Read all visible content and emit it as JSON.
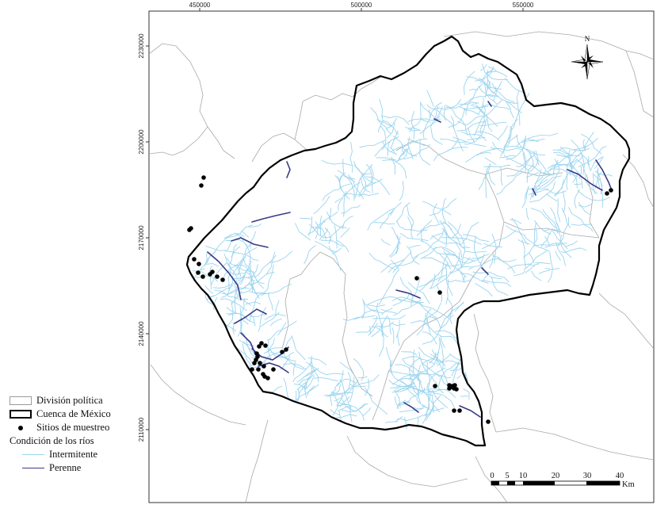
{
  "map": {
    "x_ticks": [
      {
        "label": "450000",
        "x": 450000
      },
      {
        "label": "500000",
        "x": 500000
      },
      {
        "label": "550000",
        "x": 550000
      }
    ],
    "y_ticks": [
      {
        "label": "2230000",
        "y": 2230000
      },
      {
        "label": "2200000",
        "y": 2200000
      },
      {
        "label": "2170000",
        "y": 2170000
      },
      {
        "label": "2140000",
        "y": 2140000
      },
      {
        "label": "2110000",
        "y": 2110000
      }
    ],
    "north_label": "N",
    "scale": {
      "labels": [
        "0",
        "5",
        "10",
        "20",
        "30",
        "40"
      ],
      "unit": "Km"
    }
  },
  "legend": {
    "division": "División política",
    "cuenca": "Cuenca de México",
    "sitios": "Sitios  de muestreo",
    "condicion": "Condición de los ríos",
    "intermitente": "Intermitente",
    "perenne": "Perenne"
  },
  "colors": {
    "intermitente": "#9ad4ee",
    "perenne": "#3a3a86",
    "cuenca": "#000000",
    "division": "#9a9a9a"
  },
  "sampling_sites_count": 44
}
